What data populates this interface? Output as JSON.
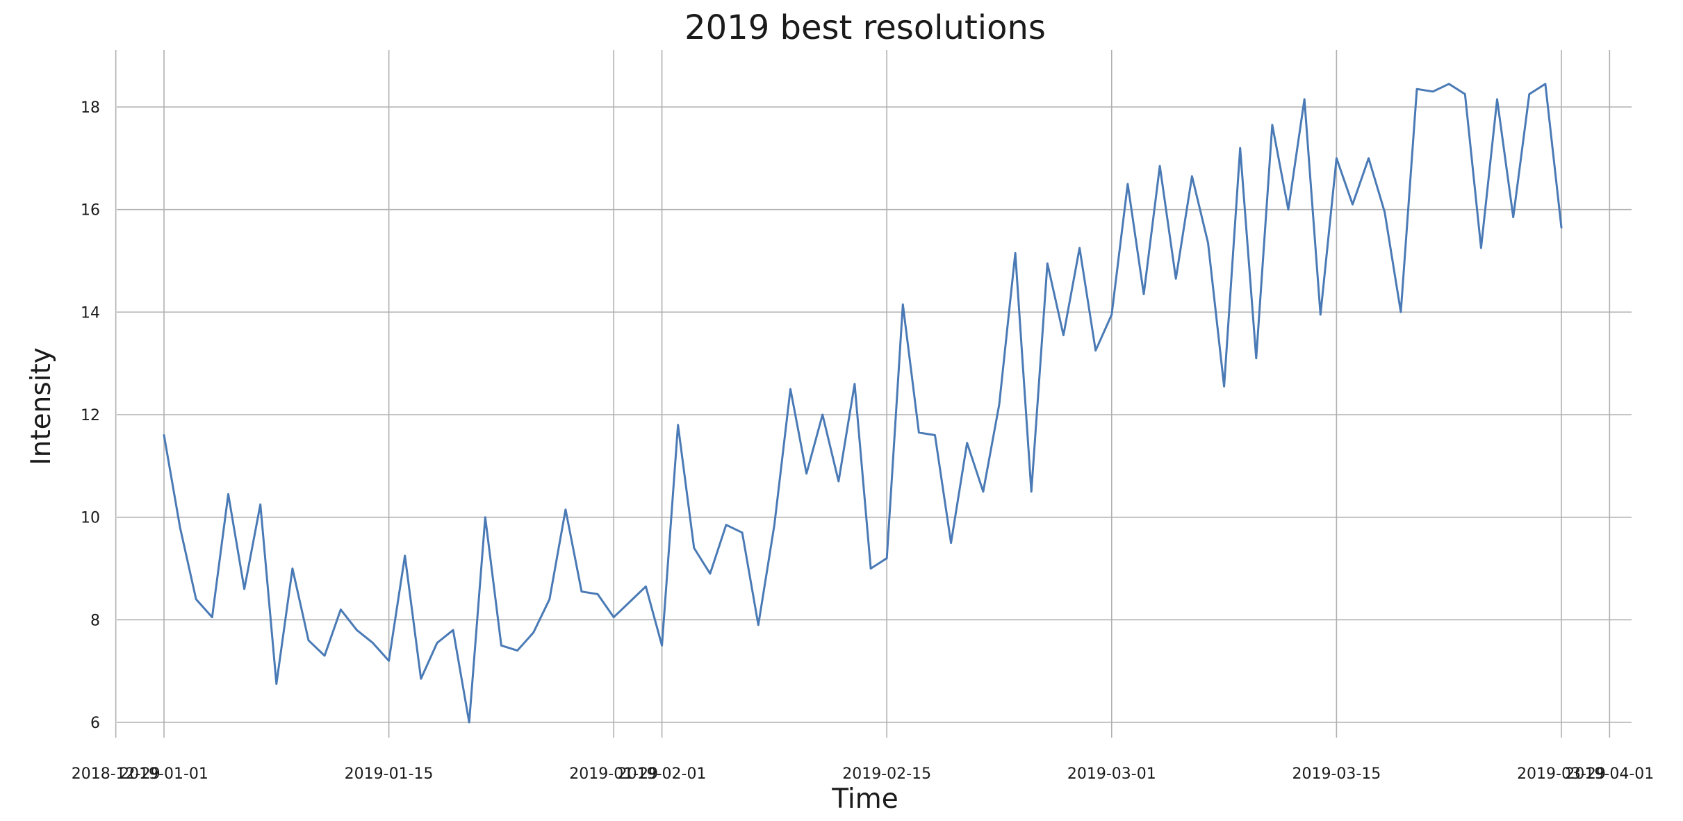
{
  "chart_data": {
    "type": "line",
    "title": "2019 best resolutions",
    "xlabel": "Time",
    "ylabel": "Intensity",
    "x_axis": "date",
    "xlim": [
      "2018-12-29",
      "2019-04-03"
    ],
    "ylim": [
      5.4,
      19.1
    ],
    "grid": true,
    "x_ticks": [
      {
        "date": "2018-12-29",
        "label": "2018-12-29"
      },
      {
        "date": "2019-01-01",
        "label": "2019-01-01"
      },
      {
        "date": "2019-01-15",
        "label": "2019-01-15"
      },
      {
        "date": "2019-01-29",
        "label": "2019-01-29"
      },
      {
        "date": "2019-02-01",
        "label": "2019-02-01"
      },
      {
        "date": "2019-02-15",
        "label": "2019-02-15"
      },
      {
        "date": "2019-03-01",
        "label": "2019-03-01"
      },
      {
        "date": "2019-03-15",
        "label": "2019-03-15"
      },
      {
        "date": "2019-03-29",
        "label": "2019-03-29"
      },
      {
        "date": "2019-04-01",
        "label": "2019-04-01"
      }
    ],
    "y_ticks": [
      6,
      8,
      10,
      12,
      14,
      16,
      18
    ],
    "series": [
      {
        "color": "#4a7ab5",
        "x": [
          "2019-01-01",
          "2019-01-02",
          "2019-01-03",
          "2019-01-04",
          "2019-01-05",
          "2019-01-06",
          "2019-01-07",
          "2019-01-08",
          "2019-01-09",
          "2019-01-10",
          "2019-01-11",
          "2019-01-12",
          "2019-01-13",
          "2019-01-14",
          "2019-01-15",
          "2019-01-16",
          "2019-01-17",
          "2019-01-18",
          "2019-01-19",
          "2019-01-20",
          "2019-01-21",
          "2019-01-22",
          "2019-01-23",
          "2019-01-24",
          "2019-01-25",
          "2019-01-26",
          "2019-01-27",
          "2019-01-28",
          "2019-01-29",
          "2019-01-30",
          "2019-01-31",
          "2019-02-01",
          "2019-02-02",
          "2019-02-03",
          "2019-02-04",
          "2019-02-05",
          "2019-02-06",
          "2019-02-07",
          "2019-02-08",
          "2019-02-09",
          "2019-02-10",
          "2019-02-11",
          "2019-02-12",
          "2019-02-13",
          "2019-02-14",
          "2019-02-15",
          "2019-02-16",
          "2019-02-17",
          "2019-02-18",
          "2019-02-19",
          "2019-02-20",
          "2019-02-21",
          "2019-02-22",
          "2019-02-23",
          "2019-02-24",
          "2019-02-25",
          "2019-02-26",
          "2019-02-27",
          "2019-02-28",
          "2019-03-01",
          "2019-03-02",
          "2019-03-03",
          "2019-03-04",
          "2019-03-05",
          "2019-03-06",
          "2019-03-07",
          "2019-03-08",
          "2019-03-09",
          "2019-03-10",
          "2019-03-11",
          "2019-03-12",
          "2019-03-13",
          "2019-03-14",
          "2019-03-15",
          "2019-03-16",
          "2019-03-17",
          "2019-03-18",
          "2019-03-19",
          "2019-03-20",
          "2019-03-21",
          "2019-03-22",
          "2019-03-23",
          "2019-03-24",
          "2019-03-25",
          "2019-03-26",
          "2019-03-27",
          "2019-03-28",
          "2019-03-29"
        ],
        "y": [
          11.6,
          9.8,
          8.4,
          8.05,
          10.45,
          8.6,
          10.25,
          6.75,
          9.0,
          7.6,
          7.3,
          8.2,
          7.8,
          7.55,
          7.2,
          9.25,
          6.85,
          7.55,
          7.8,
          6.0,
          10.0,
          7.5,
          7.4,
          7.75,
          8.4,
          10.15,
          8.55,
          8.5,
          8.05,
          8.35,
          8.65,
          7.5,
          11.8,
          9.4,
          8.9,
          9.85,
          9.7,
          7.9,
          9.85,
          12.5,
          10.85,
          12.0,
          10.7,
          12.6,
          9.0,
          9.2,
          14.15,
          11.65,
          11.6,
          9.5,
          11.45,
          10.5,
          12.2,
          15.15,
          10.5,
          14.95,
          13.55,
          15.25,
          13.25,
          13.95,
          16.5,
          14.35,
          16.85,
          14.65,
          16.65,
          15.35,
          12.55,
          17.2,
          13.1,
          17.65,
          16.0,
          18.15,
          13.95,
          17.0,
          16.1,
          17.0,
          15.95,
          14.0,
          18.35,
          18.3,
          18.45,
          18.25,
          15.25,
          18.15,
          15.85,
          18.25,
          18.45,
          15.65
        ]
      }
    ]
  }
}
